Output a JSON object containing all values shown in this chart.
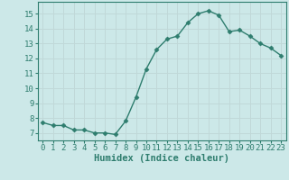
{
  "x": [
    0,
    1,
    2,
    3,
    4,
    5,
    6,
    7,
    8,
    9,
    10,
    11,
    12,
    13,
    14,
    15,
    16,
    17,
    18,
    19,
    20,
    21,
    22,
    23
  ],
  "y": [
    7.7,
    7.5,
    7.5,
    7.2,
    7.2,
    7.0,
    7.0,
    6.9,
    7.8,
    9.4,
    11.3,
    12.6,
    13.3,
    13.5,
    14.4,
    15.0,
    15.2,
    14.9,
    13.8,
    13.9,
    13.5,
    13.0,
    12.7,
    12.2
  ],
  "line_color": "#2e7d6e",
  "marker": "D",
  "marker_size": 2.5,
  "background_color": "#cce8e8",
  "grid_color": "#c0d8d8",
  "axis_color": "#2e7d6e",
  "xlabel": "Humidex (Indice chaleur)",
  "xlim": [
    -0.5,
    23.5
  ],
  "ylim": [
    6.5,
    15.8
  ],
  "yticks": [
    7,
    8,
    9,
    10,
    11,
    12,
    13,
    14,
    15
  ],
  "xticks": [
    0,
    1,
    2,
    3,
    4,
    5,
    6,
    7,
    8,
    9,
    10,
    11,
    12,
    13,
    14,
    15,
    16,
    17,
    18,
    19,
    20,
    21,
    22,
    23
  ],
  "xlabel_fontsize": 7.5,
  "tick_fontsize": 6.5,
  "line_width": 1.0
}
